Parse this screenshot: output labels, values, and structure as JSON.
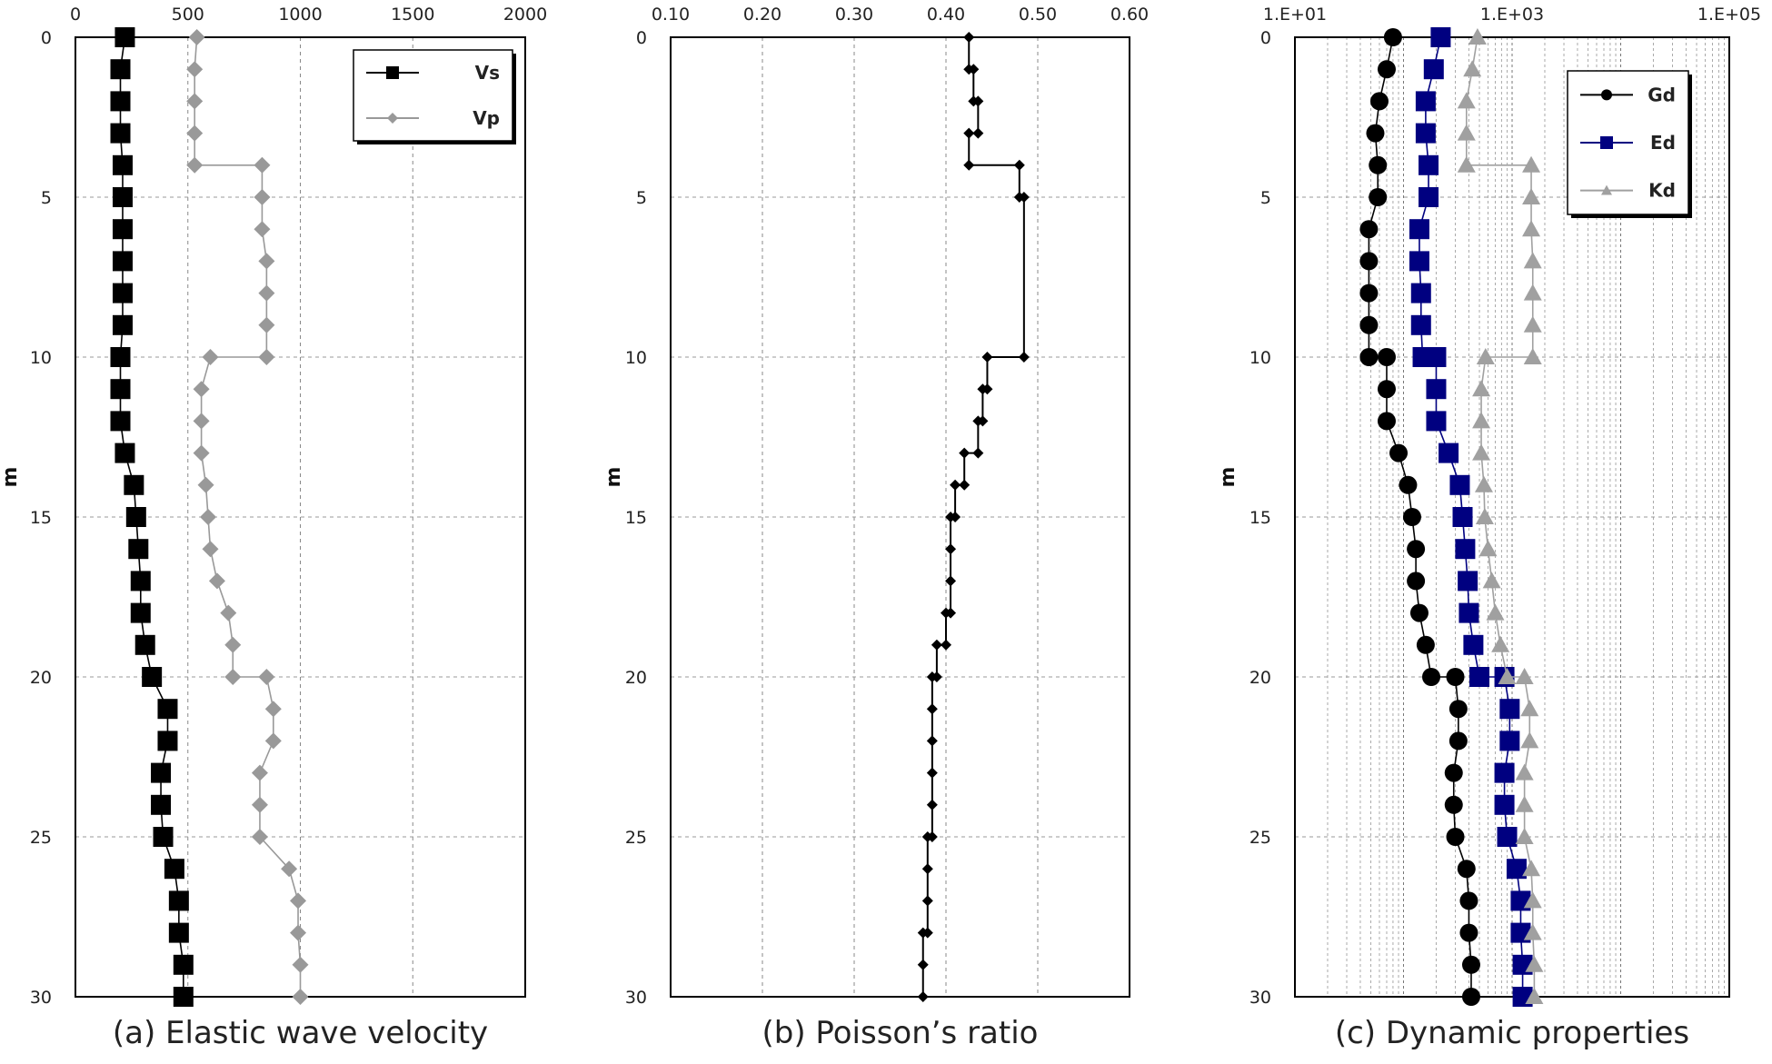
{
  "chart_data": [
    {
      "type": "scatter",
      "caption": "(a) Elastic wave velocity",
      "ylabel": "m",
      "xlim": [
        0,
        2000
      ],
      "ylim": [
        0,
        30
      ],
      "xticks": [
        "0",
        "500",
        "1000",
        "1500",
        "2000"
      ],
      "xtick_values": [
        0,
        500,
        1000,
        1500,
        2000
      ],
      "yticks": [
        "0",
        "5",
        "10",
        "15",
        "20",
        "25",
        "30"
      ],
      "ytick_values": [
        0,
        5,
        10,
        15,
        20,
        25,
        30
      ],
      "xscale": "linear",
      "grid": true,
      "legend_position": "top-right",
      "series": [
        {
          "name": "Vs",
          "color": "#000000",
          "marker": "square",
          "points": [
            [
              220,
              0
            ],
            [
              200,
              1
            ],
            [
              200,
              2
            ],
            [
              200,
              3
            ],
            [
              210,
              4
            ],
            [
              210,
              5
            ],
            [
              210,
              6
            ],
            [
              210,
              7
            ],
            [
              210,
              8
            ],
            [
              210,
              9
            ],
            [
              200,
              10
            ],
            [
              200,
              11
            ],
            [
              200,
              12
            ],
            [
              220,
              13
            ],
            [
              260,
              14
            ],
            [
              270,
              15
            ],
            [
              280,
              16
            ],
            [
              290,
              17
            ],
            [
              290,
              18
            ],
            [
              310,
              19
            ],
            [
              340,
              20
            ],
            [
              410,
              21
            ],
            [
              410,
              22
            ],
            [
              380,
              23
            ],
            [
              380,
              24
            ],
            [
              390,
              25
            ],
            [
              440,
              26
            ],
            [
              460,
              27
            ],
            [
              460,
              28
            ],
            [
              480,
              29
            ],
            [
              480,
              30
            ]
          ]
        },
        {
          "name": "Vp",
          "color": "#999999",
          "marker": "diamond",
          "points": [
            [
              540,
              0
            ],
            [
              530,
              1
            ],
            [
              530,
              2
            ],
            [
              530,
              3
            ],
            [
              530,
              4
            ],
            [
              830,
              4
            ],
            [
              830,
              5
            ],
            [
              830,
              6
            ],
            [
              850,
              7
            ],
            [
              850,
              8
            ],
            [
              850,
              9
            ],
            [
              850,
              10
            ],
            [
              600,
              10
            ],
            [
              560,
              11
            ],
            [
              560,
              12
            ],
            [
              560,
              13
            ],
            [
              580,
              14
            ],
            [
              590,
              15
            ],
            [
              600,
              16
            ],
            [
              630,
              17
            ],
            [
              680,
              18
            ],
            [
              700,
              19
            ],
            [
              700,
              20
            ],
            [
              850,
              20
            ],
            [
              880,
              21
            ],
            [
              880,
              22
            ],
            [
              820,
              23
            ],
            [
              820,
              24
            ],
            [
              820,
              25
            ],
            [
              950,
              26
            ],
            [
              990,
              27
            ],
            [
              990,
              28
            ],
            [
              1000,
              29
            ],
            [
              1000,
              30
            ]
          ]
        }
      ]
    },
    {
      "type": "line",
      "caption": "(b) Poisson’s ratio",
      "ylabel": "m",
      "xlim": [
        0.1,
        0.6
      ],
      "ylim": [
        0,
        30
      ],
      "xticks": [
        "0.10",
        "0.20",
        "0.30",
        "0.40",
        "0.50",
        "0.60"
      ],
      "xtick_values": [
        0.1,
        0.2,
        0.3,
        0.4,
        0.5,
        0.6
      ],
      "yticks": [
        "0",
        "5",
        "10",
        "15",
        "20",
        "25",
        "30"
      ],
      "ytick_values": [
        0,
        5,
        10,
        15,
        20,
        25,
        30
      ],
      "xscale": "linear",
      "grid": true,
      "series": [
        {
          "name": "",
          "color": "#000000",
          "marker": "diamond",
          "points": [
            [
              0.425,
              0
            ],
            [
              0.425,
              1
            ],
            [
              0.43,
              1
            ],
            [
              0.43,
              2
            ],
            [
              0.435,
              2
            ],
            [
              0.435,
              3
            ],
            [
              0.425,
              3
            ],
            [
              0.425,
              4
            ],
            [
              0.48,
              4
            ],
            [
              0.48,
              5
            ],
            [
              0.485,
              5
            ],
            [
              0.485,
              10
            ],
            [
              0.445,
              10
            ],
            [
              0.445,
              11
            ],
            [
              0.44,
              11
            ],
            [
              0.44,
              12
            ],
            [
              0.435,
              12
            ],
            [
              0.435,
              13
            ],
            [
              0.42,
              13
            ],
            [
              0.42,
              14
            ],
            [
              0.41,
              14
            ],
            [
              0.41,
              15
            ],
            [
              0.405,
              15
            ],
            [
              0.405,
              16
            ],
            [
              0.405,
              17
            ],
            [
              0.405,
              18
            ],
            [
              0.4,
              18
            ],
            [
              0.4,
              19
            ],
            [
              0.39,
              19
            ],
            [
              0.39,
              20
            ],
            [
              0.385,
              20
            ],
            [
              0.385,
              21
            ],
            [
              0.385,
              22
            ],
            [
              0.385,
              23
            ],
            [
              0.385,
              24
            ],
            [
              0.385,
              25
            ],
            [
              0.38,
              25
            ],
            [
              0.38,
              26
            ],
            [
              0.38,
              27
            ],
            [
              0.38,
              28
            ],
            [
              0.375,
              28
            ],
            [
              0.375,
              29
            ],
            [
              0.375,
              30
            ]
          ]
        }
      ]
    },
    {
      "type": "scatter",
      "caption": "(c) Dynamic properties",
      "ylabel": "m",
      "xlim": [
        10,
        100000
      ],
      "ylim": [
        0,
        30
      ],
      "xticks": [
        "1.E+01",
        "1.E+03",
        "1.E+05"
      ],
      "xtick_values": [
        10,
        1000,
        100000
      ],
      "yticks": [
        "0",
        "5",
        "10",
        "15",
        "20",
        "25",
        "30"
      ],
      "ytick_values": [
        0,
        5,
        10,
        15,
        20,
        25,
        30
      ],
      "xscale": "log",
      "grid": true,
      "legend_position": "top-right",
      "series": [
        {
          "name": "Gd",
          "color": "#000000",
          "marker": "circle",
          "points": [
            [
              80,
              0
            ],
            [
              70,
              1
            ],
            [
              60,
              2
            ],
            [
              55,
              3
            ],
            [
              58,
              4
            ],
            [
              58,
              5
            ],
            [
              48,
              6
            ],
            [
              48,
              7
            ],
            [
              48,
              8
            ],
            [
              48,
              9
            ],
            [
              48,
              10
            ],
            [
              70,
              10
            ],
            [
              70,
              11
            ],
            [
              70,
              12
            ],
            [
              90,
              13
            ],
            [
              110,
              14
            ],
            [
              120,
              15
            ],
            [
              130,
              16
            ],
            [
              130,
              17
            ],
            [
              140,
              18
            ],
            [
              160,
              19
            ],
            [
              180,
              20
            ],
            [
              300,
              20
            ],
            [
              320,
              21
            ],
            [
              320,
              22
            ],
            [
              290,
              23
            ],
            [
              290,
              24
            ],
            [
              300,
              25
            ],
            [
              380,
              26
            ],
            [
              400,
              27
            ],
            [
              400,
              28
            ],
            [
              420,
              29
            ],
            [
              420,
              30
            ]
          ]
        },
        {
          "name": "Ed",
          "color": "#000080",
          "marker": "square",
          "points": [
            [
              220,
              0
            ],
            [
              190,
              1
            ],
            [
              160,
              2
            ],
            [
              160,
              3
            ],
            [
              170,
              4
            ],
            [
              170,
              5
            ],
            [
              140,
              6
            ],
            [
              140,
              7
            ],
            [
              145,
              8
            ],
            [
              145,
              9
            ],
            [
              150,
              10
            ],
            [
              200,
              10
            ],
            [
              200,
              11
            ],
            [
              200,
              12
            ],
            [
              260,
              13
            ],
            [
              330,
              14
            ],
            [
              350,
              15
            ],
            [
              370,
              16
            ],
            [
              390,
              17
            ],
            [
              400,
              18
            ],
            [
              440,
              19
            ],
            [
              500,
              20
            ],
            [
              850,
              20
            ],
            [
              950,
              21
            ],
            [
              950,
              22
            ],
            [
              850,
              23
            ],
            [
              850,
              24
            ],
            [
              900,
              25
            ],
            [
              1100,
              26
            ],
            [
              1200,
              27
            ],
            [
              1200,
              28
            ],
            [
              1250,
              29
            ],
            [
              1250,
              30
            ]
          ]
        },
        {
          "name": "Kd",
          "color": "#a0a0a0",
          "marker": "triangle",
          "points": [
            [
              480,
              0
            ],
            [
              430,
              1
            ],
            [
              380,
              2
            ],
            [
              380,
              3
            ],
            [
              380,
              4
            ],
            [
              1500,
              4
            ],
            [
              1500,
              5
            ],
            [
              1500,
              6
            ],
            [
              1550,
              7
            ],
            [
              1550,
              8
            ],
            [
              1550,
              9
            ],
            [
              1550,
              10
            ],
            [
              570,
              10
            ],
            [
              520,
              11
            ],
            [
              520,
              12
            ],
            [
              520,
              13
            ],
            [
              550,
              14
            ],
            [
              560,
              15
            ],
            [
              600,
              16
            ],
            [
              650,
              17
            ],
            [
              700,
              18
            ],
            [
              780,
              19
            ],
            [
              900,
              20
            ],
            [
              1300,
              20
            ],
            [
              1450,
              21
            ],
            [
              1450,
              22
            ],
            [
              1300,
              23
            ],
            [
              1300,
              24
            ],
            [
              1300,
              25
            ],
            [
              1500,
              26
            ],
            [
              1550,
              27
            ],
            [
              1550,
              28
            ],
            [
              1600,
              29
            ],
            [
              1600,
              30
            ]
          ]
        }
      ]
    }
  ]
}
